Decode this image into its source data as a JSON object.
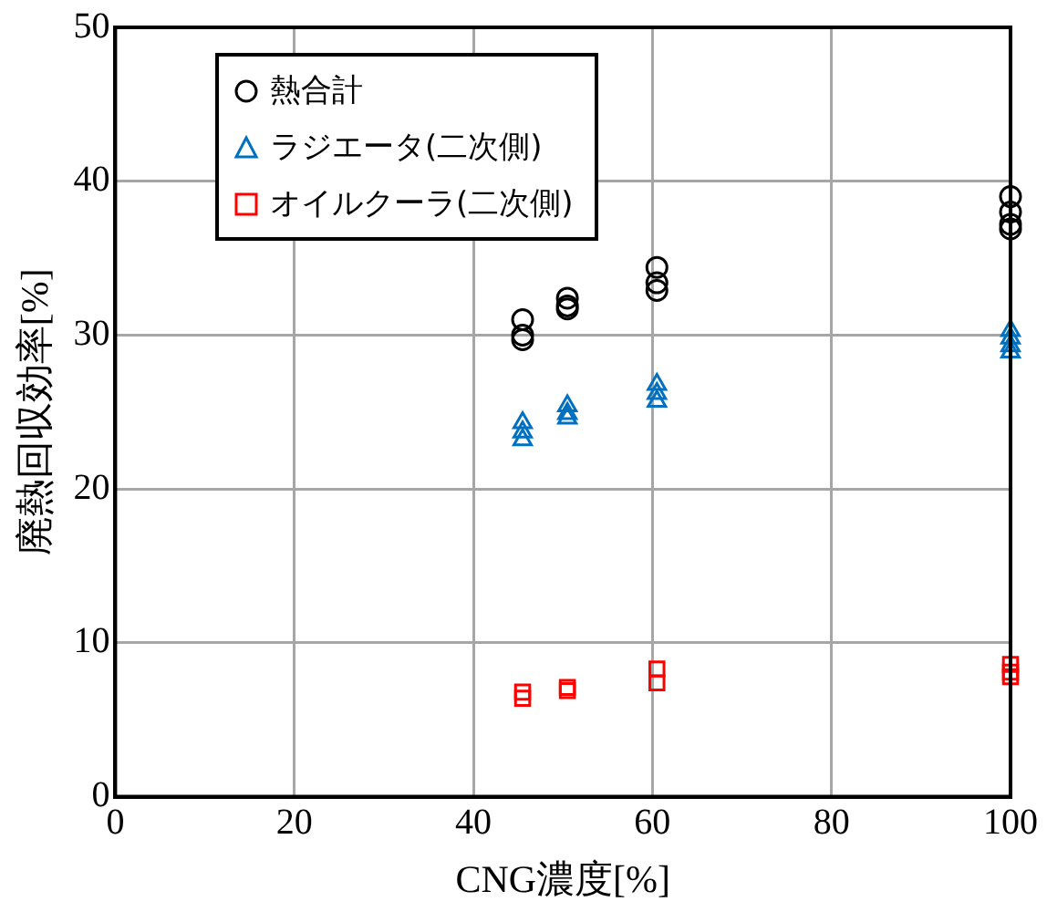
{
  "chart_data": {
    "type": "scatter",
    "xlabel": "CNG濃度[%]",
    "ylabel": "廃熱回収効率[%]",
    "xlim": [
      0,
      100
    ],
    "xticks": [
      0,
      20,
      40,
      60,
      80,
      100
    ],
    "ylim": [
      0,
      50
    ],
    "yticks": [
      0,
      10,
      20,
      30,
      40,
      50
    ],
    "grid": true,
    "legend": "top left",
    "series": [
      {
        "name": "熱合計",
        "color": "#000000",
        "marker": "circle",
        "x": [
          45.5,
          45.5,
          45.5,
          50.5,
          50.5,
          50.5,
          60.5,
          60.5,
          60.5,
          100,
          100,
          100,
          100
        ],
        "values": [
          31.0,
          30.0,
          29.7,
          32.4,
          31.9,
          31.7,
          34.4,
          33.4,
          32.9,
          39.0,
          38.0,
          37.2,
          36.9
        ]
      },
      {
        "name": "ラジエータ(二次側)",
        "color": "#0070c0",
        "marker": "triangle",
        "x": [
          45.5,
          45.5,
          45.5,
          50.5,
          50.5,
          50.5,
          60.5,
          60.5,
          60.5,
          100,
          100,
          100,
          100
        ],
        "values": [
          24.3,
          23.7,
          23.2,
          25.4,
          24.9,
          24.6,
          26.8,
          26.2,
          25.7,
          30.3,
          29.8,
          29.3,
          28.9
        ]
      },
      {
        "name": "オイルクーラ(二次側)",
        "color": "#ff0000",
        "marker": "square",
        "x": [
          45.5,
          45.5,
          50.5,
          50.5,
          60.5,
          60.5,
          100,
          100,
          100
        ],
        "values": [
          6.8,
          6.4,
          7.1,
          6.9,
          8.3,
          7.4,
          8.6,
          8.1,
          7.8
        ]
      }
    ]
  }
}
